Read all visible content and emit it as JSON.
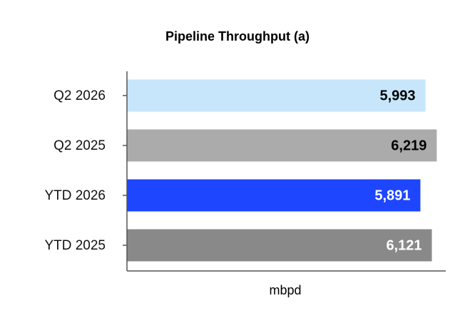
{
  "chart_data": {
    "type": "hbar",
    "title": "Pipeline Throughput (a)",
    "x_label": "mbpd",
    "categories": [
      "Q2 2026",
      "Q2 2025",
      "YTD 2026",
      "YTD 2025"
    ],
    "values": [
      5993,
      6219,
      5891,
      6121
    ],
    "value_labels": [
      "5,993",
      "6,219",
      "5,891",
      "6,121"
    ],
    "colors": [
      "#c7e6fb",
      "#ababab",
      "#1e46ff",
      "#898989"
    ],
    "value_label_colors": [
      "#000000",
      "#000000",
      "#ffffff",
      "#ffffff"
    ],
    "xlim": [
      0,
      6400
    ]
  }
}
